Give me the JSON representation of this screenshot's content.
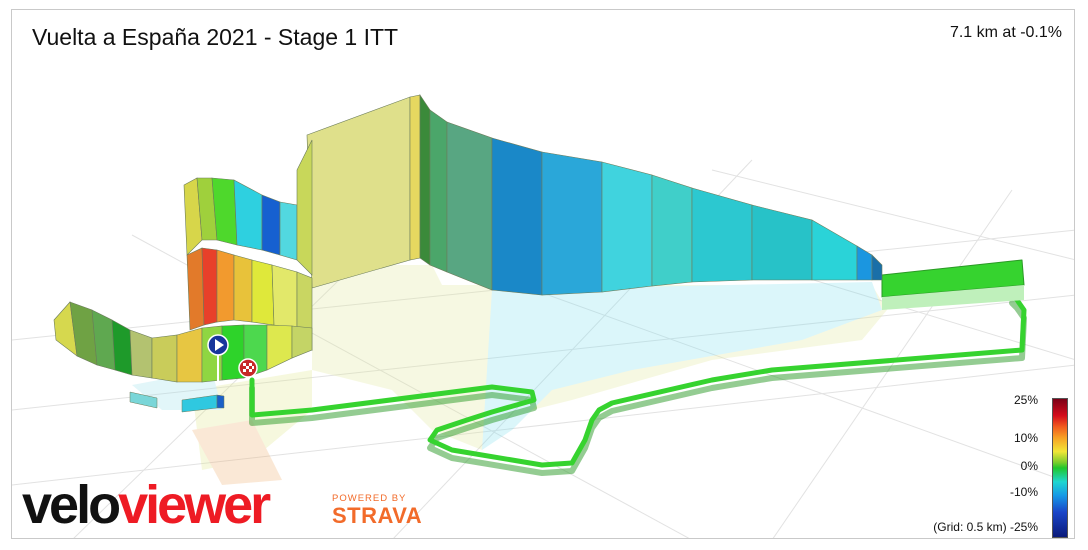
{
  "header": {
    "title": "Vuelta a España 2021 - Stage 1 ITT",
    "summary": "7.1 km at -0.1%"
  },
  "legend": {
    "ticks": [
      "25%",
      "10%",
      "0%",
      "-10%",
      "-25%"
    ],
    "grid_note": "(Grid: 0.5 km)"
  },
  "branding": {
    "velo": "velo",
    "viewer": "viewer",
    "powered_by": "POWERED BY",
    "strava": "STRAVA"
  },
  "markers": {
    "start_icon": "play-icon",
    "finish_icon": "checkered-flag-icon"
  },
  "colors": {
    "accent_green": "#2fcf2b",
    "brand_red": "#ee1b24",
    "strava_orange": "#f26b2a"
  }
}
